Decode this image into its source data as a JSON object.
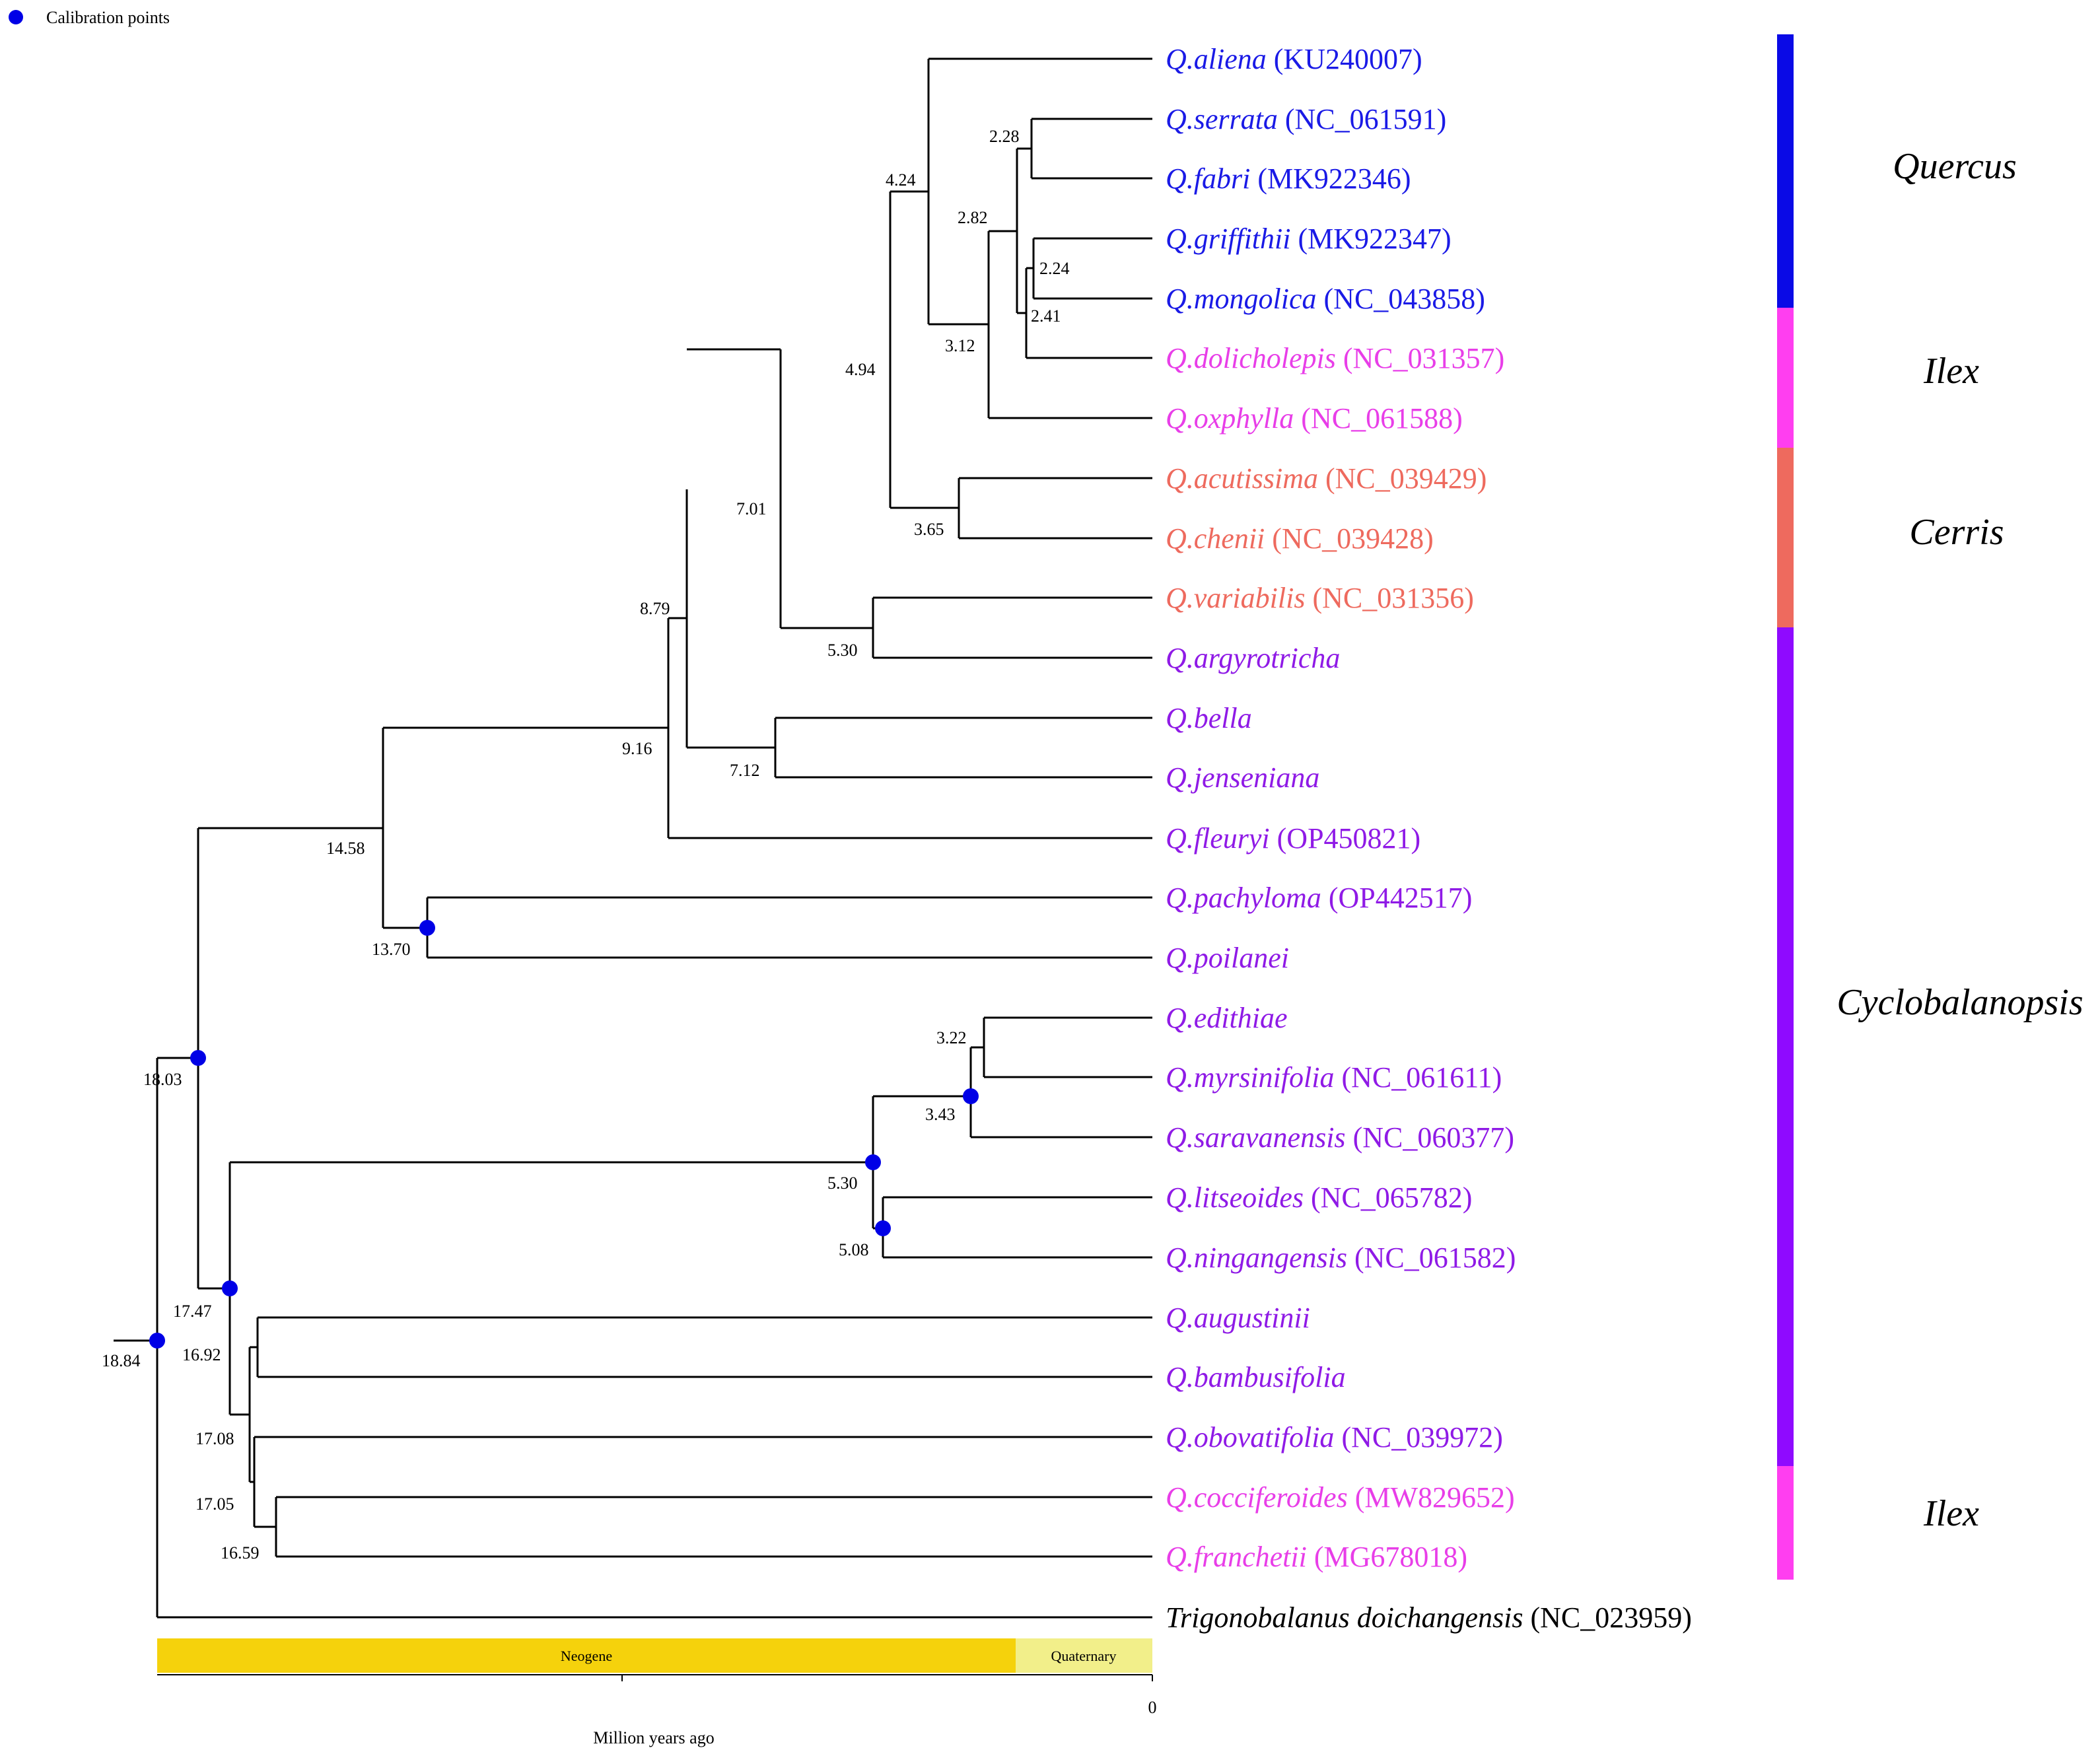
{
  "legend": {
    "label": "Calibration points",
    "marker_color": "#0000e6"
  },
  "taxa": [
    {
      "genus": "Q.aliena",
      "accession": "(KU240007)",
      "color": "#1a1ae6"
    },
    {
      "genus": "Q.serrata",
      "accession": "(NC_061591)",
      "color": "#1a1ae6"
    },
    {
      "genus": "Q.fabri",
      "accession": "(MK922346)",
      "color": "#1a1ae6"
    },
    {
      "genus": "Q.griffithii",
      "accession": "(MK922347)",
      "color": "#1a1ae6"
    },
    {
      "genus": "Q.mongolica",
      "accession": "(NC_043858)",
      "color": "#1a1ae6"
    },
    {
      "genus": "Q.dolicholepis",
      "accession": "(NC_031357)",
      "color": "#e83ee8"
    },
    {
      "genus": "Q.oxphylla",
      "accession": "(NC_061588)",
      "color": "#e83ee8"
    },
    {
      "genus": "Q.acutissima",
      "accession": "(NC_039429)",
      "color": "#ee6a5e"
    },
    {
      "genus": "Q.chenii",
      "accession": "(NC_039428)",
      "color": "#ee6a5e"
    },
    {
      "genus": "Q.variabilis",
      "accession": "(NC_031356)",
      "color": "#ee6a5e"
    },
    {
      "genus": "Q.argyrotricha",
      "accession": "",
      "color": "#8f1ae6"
    },
    {
      "genus": "Q.bella",
      "accession": "",
      "color": "#8f1ae6"
    },
    {
      "genus": "Q.jenseniana",
      "accession": "",
      "color": "#8f1ae6"
    },
    {
      "genus": "Q.fleuryi",
      "accession": "(OP450821)",
      "color": "#8f1ae6"
    },
    {
      "genus": "Q.pachyloma",
      "accession": "(OP442517)",
      "color": "#8f1ae6"
    },
    {
      "genus": "Q.poilanei",
      "accession": "",
      "color": "#8f1ae6"
    },
    {
      "genus": "Q.edithiae",
      "accession": "",
      "color": "#8f1ae6"
    },
    {
      "genus": "Q.myrsinifolia",
      "accession": "(NC_061611)",
      "color": "#8f1ae6"
    },
    {
      "genus": "Q.saravanensis",
      "accession": "(NC_060377)",
      "color": "#8f1ae6"
    },
    {
      "genus": "Q.litseoides",
      "accession": "(NC_065782)",
      "color": "#8f1ae6"
    },
    {
      "genus": "Q.ningangensis",
      "accession": "(NC_061582)",
      "color": "#8f1ae6"
    },
    {
      "genus": "Q.augustinii",
      "accession": "",
      "color": "#8f1ae6"
    },
    {
      "genus": "Q.bambusifolia",
      "accession": "",
      "color": "#8f1ae6"
    },
    {
      "genus": "Q.obovatifolia",
      "accession": "(NC_039972)",
      "color": "#8f1ae6"
    },
    {
      "genus": "Q.cocciferoides",
      "accession": "(MW829652)",
      "color": "#e83ee8"
    },
    {
      "genus": "Q.franchetii",
      "accession": "(MG678018)",
      "color": "#e83ee8"
    },
    {
      "genus": "Trigonobalanus doichangensis",
      "accession": "(NC_023959)",
      "color": "#000000"
    }
  ],
  "node_ages": [
    {
      "id": "n_serrata_fabri",
      "label": "2.28"
    },
    {
      "id": "n_griff_mong",
      "label": "2.24"
    },
    {
      "id": "n_mong_dolich",
      "label": "2.41"
    },
    {
      "id": "n_quercus_inner",
      "label": "2.82"
    },
    {
      "id": "n_quercus",
      "label": "3.12"
    },
    {
      "id": "n_aliena",
      "label": "4.24"
    },
    {
      "id": "n_cerris",
      "label": "3.65"
    },
    {
      "id": "n_big",
      "label": "4.94"
    },
    {
      "id": "n_var_arg",
      "label": "5.30"
    },
    {
      "id": "n_701",
      "label": "7.01"
    },
    {
      "id": "n_bella_jens",
      "label": "7.12"
    },
    {
      "id": "n_879",
      "label": "8.79"
    },
    {
      "id": "n_916",
      "label": "9.16"
    },
    {
      "id": "n_pach_poil",
      "label": "13.70"
    },
    {
      "id": "n_1458",
      "label": "14.58"
    },
    {
      "id": "n_edi_myr",
      "label": "3.22"
    },
    {
      "id": "n_edi_sar",
      "label": "3.43"
    },
    {
      "id": "n_lit_ning",
      "label": "5.08"
    },
    {
      "id": "n_530b",
      "label": "5.30"
    },
    {
      "id": "n_1803",
      "label": "18.03"
    },
    {
      "id": "n_1747",
      "label": "17.47"
    },
    {
      "id": "n_1692",
      "label": "16.92"
    },
    {
      "id": "n_1708",
      "label": "17.08"
    },
    {
      "id": "n_1705",
      "label": "17.05"
    },
    {
      "id": "n_1659",
      "label": "16.59"
    },
    {
      "id": "n_root",
      "label": "18.84"
    }
  ],
  "clades": [
    {
      "name": "Quercus",
      "color": "#0a0ae6"
    },
    {
      "name": "Ilex",
      "color": "#ff3ef0"
    },
    {
      "name": "Cerris",
      "color": "#ee6a5e"
    },
    {
      "name": "Cyclobalanopsis",
      "color": "#8f0aff"
    },
    {
      "name": "Ilex",
      "color": "#ff3ef0"
    }
  ],
  "timescale": {
    "periods": [
      {
        "name": "Neogene",
        "color": "#f5d20c"
      },
      {
        "name": "Quaternary",
        "color": "#f2ef8a"
      }
    ],
    "tick_zero": "0",
    "axis_label": "Million years ago"
  }
}
